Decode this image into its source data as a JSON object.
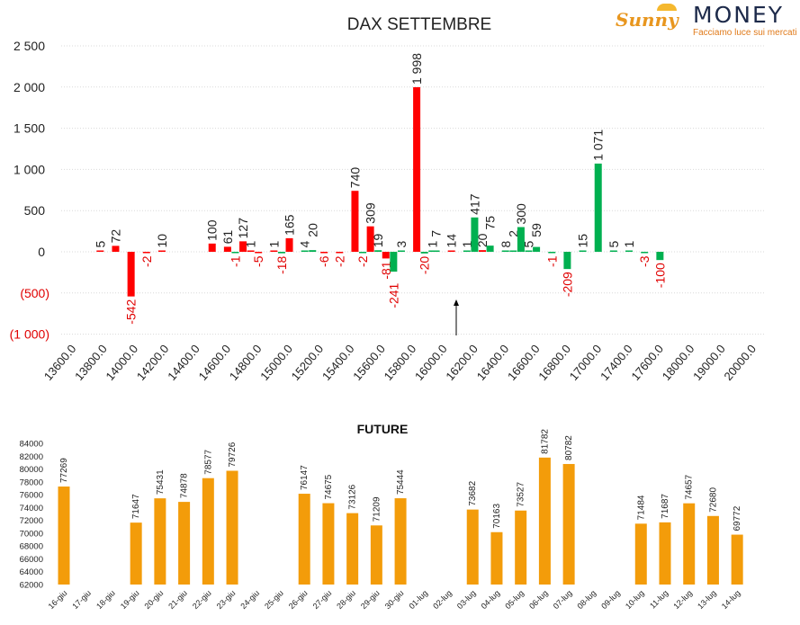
{
  "logo": {
    "brand_left": "Sunny",
    "brand_right": "MONEY",
    "tagline": "Facciamo luce sui mercati"
  },
  "colors": {
    "red": "#ff0000",
    "green": "#00b050",
    "orange": "#f39c0a",
    "grid": "#d9d9d9"
  },
  "chart_data": [
    {
      "type": "bar",
      "title": "DAX SETTEMBRE",
      "xlabel": "",
      "ylabel": "",
      "ylim": [
        -1000,
        2500
      ],
      "yticks": [
        {
          "value": 2500,
          "label": "2 500"
        },
        {
          "value": 2000,
          "label": "2 000"
        },
        {
          "value": 1500,
          "label": "1 500"
        },
        {
          "value": 1000,
          "label": "1 000"
        },
        {
          "value": 500,
          "label": "500"
        },
        {
          "value": 0,
          "label": "0"
        },
        {
          "value": -500,
          "label": "(500)"
        },
        {
          "value": -1000,
          "label": "(1 000)"
        }
      ],
      "xtick_labels": [
        "13600.0",
        "13800.0",
        "14000.0",
        "14200.0",
        "14400.0",
        "14600.0",
        "14800.0",
        "15000.0",
        "15200.0",
        "15400.0",
        "15600.0",
        "15800.0",
        "16000.0",
        "16200.0",
        "16400.0",
        "16600.0",
        "16800.0",
        "17000.0",
        "17400.0",
        "17600.0",
        "18000.0",
        "19000.0",
        "20000.0"
      ],
      "grid": true,
      "current_price_marker_strike": 16050,
      "bars": [
        {
          "strike": 13800,
          "value": 5,
          "label": "5",
          "color": "red"
        },
        {
          "strike": 13900,
          "value": 72,
          "label": "72",
          "color": "red"
        },
        {
          "strike": 14000,
          "value": -542,
          "label": "-542",
          "color": "red"
        },
        {
          "strike": 14100,
          "value": -2,
          "label": "-2",
          "color": "red"
        },
        {
          "strike": 14200,
          "value": 10,
          "label": "10",
          "color": "red"
        },
        {
          "strike": 14525,
          "value": 100,
          "label": "100",
          "color": "red"
        },
        {
          "strike": 14625,
          "value": 61,
          "label": "61",
          "color": "red"
        },
        {
          "strike": 14675,
          "value": -1,
          "label": "-1",
          "color": "green"
        },
        {
          "strike": 14725,
          "value": 127,
          "label": "127",
          "color": "red"
        },
        {
          "strike": 14775,
          "value": 1,
          "label": "1",
          "color": "red"
        },
        {
          "strike": 14825,
          "value": -5,
          "label": "-5",
          "color": "red"
        },
        {
          "strike": 14925,
          "value": 1,
          "label": "1",
          "color": "red"
        },
        {
          "strike": 14975,
          "value": -18,
          "label": "-18",
          "color": "green"
        },
        {
          "strike": 15025,
          "value": 165,
          "label": "165",
          "color": "red"
        },
        {
          "strike": 15125,
          "value": 4,
          "label": "4",
          "color": "green"
        },
        {
          "strike": 15175,
          "value": 20,
          "label": "20",
          "color": "green"
        },
        {
          "strike": 15250,
          "value": -6,
          "label": "-6",
          "color": "red"
        },
        {
          "strike": 15350,
          "value": -2,
          "label": "-2",
          "color": "red"
        },
        {
          "strike": 15450,
          "value": 740,
          "label": "740",
          "color": "red"
        },
        {
          "strike": 15500,
          "value": -2,
          "label": "-2",
          "color": "green"
        },
        {
          "strike": 15550,
          "value": 309,
          "label": "309",
          "color": "red"
        },
        {
          "strike": 15600,
          "value": 19,
          "label": "19",
          "color": "green"
        },
        {
          "strike": 15650,
          "value": -81,
          "label": "-81",
          "color": "red"
        },
        {
          "strike": 15700,
          "value": -241,
          "label": "-241",
          "color": "green"
        },
        {
          "strike": 15750,
          "value": 3,
          "label": "3",
          "color": "green"
        },
        {
          "strike": 15850,
          "value": 1998,
          "label": "1 998",
          "color": "red"
        },
        {
          "strike": 15900,
          "value": -20,
          "label": "-20",
          "color": "green"
        },
        {
          "strike": 15950,
          "value": 1,
          "label": "1",
          "color": "green"
        },
        {
          "strike": 15975,
          "value": 7,
          "label": "7",
          "color": "green"
        },
        {
          "strike": 16075,
          "value": 14,
          "label": "14",
          "color": "red"
        },
        {
          "strike": 16175,
          "value": 1,
          "label": "1",
          "color": "green"
        },
        {
          "strike": 16225,
          "value": 417,
          "label": "417",
          "color": "green"
        },
        {
          "strike": 16275,
          "value": 20,
          "label": "20",
          "color": "red"
        },
        {
          "strike": 16325,
          "value": 75,
          "label": "75",
          "color": "green"
        },
        {
          "strike": 16425,
          "value": 8,
          "label": "8",
          "color": "green"
        },
        {
          "strike": 16475,
          "value": 2,
          "label": "2",
          "color": "green"
        },
        {
          "strike": 16525,
          "value": 300,
          "label": "300",
          "color": "green"
        },
        {
          "strike": 16575,
          "value": 5,
          "label": "5",
          "color": "green"
        },
        {
          "strike": 16625,
          "value": 59,
          "label": "59",
          "color": "green"
        },
        {
          "strike": 16725,
          "value": -1,
          "label": "-1",
          "color": "green"
        },
        {
          "strike": 16825,
          "value": -209,
          "label": "-209",
          "color": "green"
        },
        {
          "strike": 16925,
          "value": 15,
          "label": "15",
          "color": "green"
        },
        {
          "strike": 17025,
          "value": 1071,
          "label": "1 071",
          "color": "green"
        },
        {
          "strike": 17125,
          "value": 5,
          "label": "5",
          "color": "green"
        },
        {
          "strike": 17225,
          "value": 1,
          "label": "1",
          "color": "green"
        },
        {
          "strike": 17325,
          "value": -3,
          "label": "-3",
          "color": "green"
        },
        {
          "strike": 17425,
          "value": -100,
          "label": "-100",
          "color": "green"
        }
      ]
    },
    {
      "type": "bar",
      "title": "FUTURE",
      "ylim": [
        62000,
        84000
      ],
      "yticks": [
        84000,
        82000,
        80000,
        78000,
        76000,
        74000,
        72000,
        70000,
        68000,
        66000,
        64000,
        62000
      ],
      "grid": false,
      "categories": [
        "16-giu",
        "17-giu",
        "18-giu",
        "19-giu",
        "20-giu",
        "21-giu",
        "22-giu",
        "23-giu",
        "24-giu",
        "25-giu",
        "26-giu",
        "27-giu",
        "28-giu",
        "29-giu",
        "30-giu",
        "01-lug",
        "02-lug",
        "03-lug",
        "04-lug",
        "05-lug",
        "06-lug",
        "07-lug",
        "08-lug",
        "09-lug",
        "10-lug",
        "11-lug",
        "12-lug",
        "13-lug",
        "14-lug"
      ],
      "values": [
        77269,
        null,
        null,
        71647,
        75431,
        74878,
        78577,
        79726,
        null,
        null,
        76147,
        74675,
        73126,
        71209,
        75444,
        null,
        null,
        73682,
        70163,
        73527,
        81782,
        80782,
        null,
        null,
        71484,
        71687,
        74657,
        72680,
        69772
      ]
    }
  ]
}
